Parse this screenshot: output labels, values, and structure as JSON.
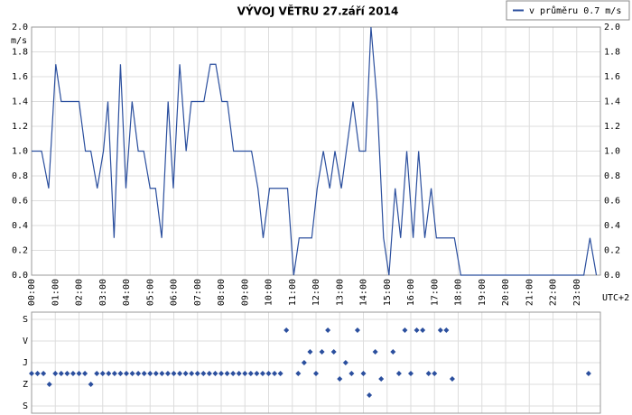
{
  "chart_data": [
    {
      "type": "line",
      "title": "VÝVOJ VĚTRU  27.září 2014",
      "y_label": "m/s",
      "x_label": "UTC+2",
      "xlim": [
        0,
        24
      ],
      "xticks": [
        {
          "value": 0,
          "label": "00:00"
        },
        {
          "value": 1,
          "label": "01:00"
        },
        {
          "value": 2,
          "label": "02:00"
        },
        {
          "value": 3,
          "label": "03:00"
        },
        {
          "value": 4,
          "label": "04:00"
        },
        {
          "value": 5,
          "label": "05:00"
        },
        {
          "value": 6,
          "label": "06:00"
        },
        {
          "value": 7,
          "label": "07:00"
        },
        {
          "value": 8,
          "label": "08:00"
        },
        {
          "value": 9,
          "label": "09:00"
        },
        {
          "value": 10,
          "label": "10:00"
        },
        {
          "value": 11,
          "label": "11:00"
        },
        {
          "value": 12,
          "label": "12:00"
        },
        {
          "value": 13,
          "label": "13:00"
        },
        {
          "value": 14,
          "label": "14:00"
        },
        {
          "value": 15,
          "label": "15:00"
        },
        {
          "value": 16,
          "label": "16:00"
        },
        {
          "value": 17,
          "label": "17:00"
        },
        {
          "value": 18,
          "label": "18:00"
        },
        {
          "value": 19,
          "label": "19:00"
        },
        {
          "value": 20,
          "label": "20:00"
        },
        {
          "value": 21,
          "label": "21:00"
        },
        {
          "value": 22,
          "label": "22:00"
        },
        {
          "value": 23,
          "label": "23:00"
        }
      ],
      "ylim": [
        0,
        2
      ],
      "yticks": [
        {
          "value": 0,
          "label": "0.0"
        },
        0.2,
        0.4,
        0.6,
        0.8,
        {
          "value": 1,
          "label": "1.0"
        },
        1.2,
        1.4,
        1.6,
        1.8,
        {
          "value": 2,
          "label": "2.0"
        }
      ],
      "grid": true,
      "legend": "top-right",
      "series": [
        {
          "name": "v průměru 0.7 m/s",
          "color": "#2b4f9e",
          "x": [
            0,
            0.42,
            0.72,
            1.02,
            1.25,
            2.0,
            2.27,
            2.5,
            2.77,
            3.03,
            3.22,
            3.48,
            3.75,
            3.98,
            4.24,
            4.5,
            4.73,
            5.0,
            5.23,
            5.49,
            5.76,
            5.98,
            6.25,
            6.52,
            6.74,
            7.27,
            7.54,
            7.77,
            8.03,
            8.26,
            8.52,
            9.28,
            9.55,
            9.77,
            10.04,
            10.8,
            11.06,
            11.29,
            11.82,
            12.05,
            12.31,
            12.58,
            12.8,
            13.07,
            13.56,
            13.83,
            14.09,
            14.32,
            14.58,
            14.85,
            15.08,
            15.34,
            15.57,
            15.83,
            16.1,
            16.33,
            16.59,
            16.86,
            17.08,
            17.84,
            18.11,
            23.3,
            23.56,
            23.83
          ],
          "values": [
            1.0,
            1.0,
            0.7,
            1.7,
            1.4,
            1.4,
            1.0,
            1.0,
            0.7,
            1.0,
            1.4,
            0.3,
            1.7,
            0.7,
            1.4,
            1.0,
            1.0,
            0.7,
            0.7,
            0.3,
            1.4,
            0.7,
            1.7,
            1.0,
            1.4,
            1.4,
            1.7,
            1.7,
            1.4,
            1.4,
            1.0,
            1.0,
            0.7,
            0.3,
            0.7,
            0.7,
            0,
            0.3,
            0.3,
            0.7,
            1.0,
            0.7,
            1.0,
            0.7,
            1.4,
            1.0,
            1.0,
            2.0,
            1.4,
            0.3,
            0,
            0.7,
            0.3,
            1.0,
            0.3,
            1.0,
            0.3,
            0.7,
            0.3,
            0.3,
            0,
            0,
            0.3,
            0
          ]
        }
      ]
    },
    {
      "type": "scatter",
      "color": "#2b4f9e",
      "xlim": [
        0,
        24
      ],
      "ylim": [
        -30,
        390
      ],
      "y_inverted": true,
      "yticks": [
        {
          "value": 0,
          "label": "S"
        },
        {
          "value": 90,
          "label": "V"
        },
        {
          "value": 180,
          "label": "J"
        },
        {
          "value": 270,
          "label": "Z"
        },
        {
          "value": 360,
          "label": "S"
        }
      ],
      "x": [
        0,
        0.25,
        0.5,
        0.75,
        1,
        1.25,
        1.5,
        1.75,
        2,
        2.25,
        2.5,
        2.75,
        3,
        3.25,
        3.5,
        3.75,
        4,
        4.25,
        4.5,
        4.75,
        5,
        5.25,
        5.5,
        5.75,
        6,
        6.25,
        6.5,
        6.75,
        7,
        7.25,
        7.5,
        7.75,
        8,
        8.25,
        8.5,
        8.75,
        9,
        9.25,
        9.5,
        9.75,
        10,
        10.25,
        10.5,
        10.75,
        11.25,
        11.5,
        11.75,
        12,
        12.25,
        12.5,
        12.75,
        13,
        13.25,
        13.5,
        13.75,
        14,
        14.25,
        14.5,
        14.75,
        15.25,
        15.5,
        15.75,
        16,
        16.25,
        16.5,
        16.75,
        17,
        17.25,
        17.5,
        17.75,
        23.5
      ],
      "values": [
        225,
        225,
        225,
        270,
        225,
        225,
        225,
        225,
        225,
        225,
        270,
        225,
        225,
        225,
        225,
        225,
        225,
        225,
        225,
        225,
        225,
        225,
        225,
        225,
        225,
        225,
        225,
        225,
        225,
        225,
        225,
        225,
        225,
        225,
        225,
        225,
        225,
        225,
        225,
        225,
        225,
        225,
        225,
        45,
        225,
        180,
        135,
        225,
        135,
        45,
        135,
        247.5,
        180,
        225,
        45,
        225,
        315,
        135,
        247.5,
        135,
        225,
        45,
        225,
        45,
        45,
        225,
        225,
        45,
        45,
        247.5,
        225
      ]
    }
  ]
}
